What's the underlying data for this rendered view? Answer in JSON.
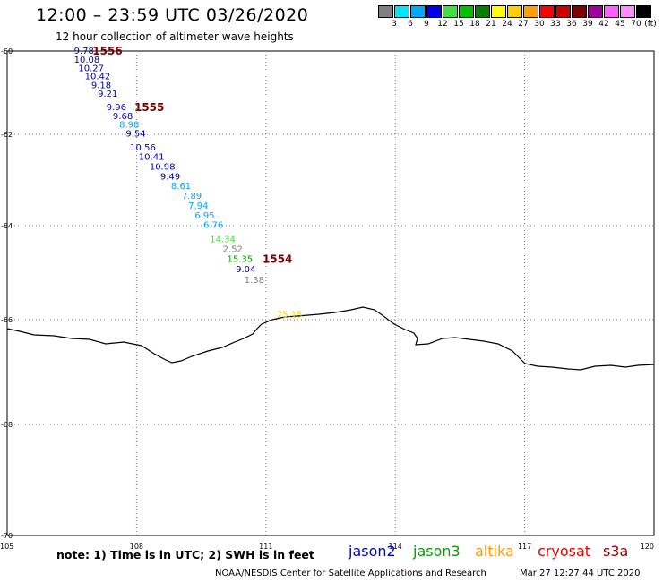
{
  "header": {
    "title": "12:00 – 23:59 UTC 03/26/2020",
    "subtitle": "12 hour collection of altimeter wave heights"
  },
  "colorbar": {
    "swatches": [
      "#808080",
      "#00e8ff",
      "#00a8ff",
      "#0000ee",
      "#40e040",
      "#00c000",
      "#008000",
      "#ffff00",
      "#ffd000",
      "#ffa000",
      "#ff0000",
      "#cc0000",
      "#800000",
      "#a000a0",
      "#ff60ff",
      "#ff90ff",
      "#000000"
    ],
    "ticks": [
      "3",
      "6",
      "9",
      "12",
      "15",
      "18",
      "21",
      "24",
      "27",
      "30",
      "33",
      "36",
      "39",
      "42",
      "45",
      "70"
    ],
    "unit": "(ft)"
  },
  "axes": {
    "lat_ticks": [
      "-60",
      "-62",
      "-64",
      "-66",
      "-68",
      "-70"
    ],
    "lon_ticks": [
      "105",
      "108",
      "111",
      "114",
      "117",
      "120"
    ]
  },
  "track_labels": [
    "1556",
    "1555",
    "1554"
  ],
  "observations": [
    {
      "lon": 106.55,
      "lat": -60.06,
      "v": "9.78",
      "c": "#0000aa"
    },
    {
      "lon": 106.55,
      "lat": -60.28,
      "v": "10.08",
      "c": "#0000aa"
    },
    {
      "lon": 106.65,
      "lat": -60.48,
      "v": "10.27",
      "c": "#0000aa"
    },
    {
      "lon": 106.8,
      "lat": -60.68,
      "v": "10.42",
      "c": "#0000aa"
    },
    {
      "lon": 106.95,
      "lat": -60.89,
      "v": "9.18",
      "c": "#0000aa"
    },
    {
      "lon": 107.1,
      "lat": -61.1,
      "v": "9.21",
      "c": "#0000aa"
    },
    {
      "lon": 107.3,
      "lat": -61.42,
      "v": "9.96",
      "c": "#0000aa"
    },
    {
      "lon": 107.45,
      "lat": -61.63,
      "v": "9.68",
      "c": "#0000aa"
    },
    {
      "lon": 107.6,
      "lat": -61.84,
      "v": "8.98",
      "c": "#00a8ff"
    },
    {
      "lon": 107.75,
      "lat": -62.05,
      "v": "9.54",
      "c": "#0000aa"
    },
    {
      "lon": 107.85,
      "lat": -62.35,
      "v": "10.56",
      "c": "#0000aa"
    },
    {
      "lon": 108.05,
      "lat": -62.56,
      "v": "10.41",
      "c": "#0000aa"
    },
    {
      "lon": 108.3,
      "lat": -62.77,
      "v": "10.98",
      "c": "#0000aa"
    },
    {
      "lon": 108.55,
      "lat": -62.99,
      "v": "9.49",
      "c": "#0000aa"
    },
    {
      "lon": 108.8,
      "lat": -63.2,
      "v": "8.61",
      "c": "#00a8ff"
    },
    {
      "lon": 109.05,
      "lat": -63.41,
      "v": "7.89",
      "c": "#00a8ff"
    },
    {
      "lon": 109.2,
      "lat": -63.63,
      "v": "7.94",
      "c": "#00a8ff"
    },
    {
      "lon": 109.35,
      "lat": -63.84,
      "v": "6.95",
      "c": "#00a8ff"
    },
    {
      "lon": 109.55,
      "lat": -64.05,
      "v": "6.76",
      "c": "#00a8ff"
    },
    {
      "lon": 109.7,
      "lat": -64.35,
      "v": "14.34",
      "c": "#40e040"
    },
    {
      "lon": 110.0,
      "lat": -64.56,
      "v": "2.52",
      "c": "#808080"
    },
    {
      "lon": 110.1,
      "lat": -64.77,
      "v": "15.35",
      "c": "#00a000"
    },
    {
      "lon": 110.3,
      "lat": -64.99,
      "v": "9.04",
      "c": "#0000aa"
    },
    {
      "lon": 110.5,
      "lat": -65.22,
      "v": "1.38",
      "c": "#808080"
    },
    {
      "lon": 111.25,
      "lat": -65.95,
      "v": "25.15",
      "c": "#ffd000"
    }
  ],
  "note": "note: 1) Time is in UTC; 2) SWH is in feet",
  "missions": [
    {
      "name": "jason2",
      "color": "#0000cc"
    },
    {
      "name": "jason3",
      "color": "#00a000"
    },
    {
      "name": "altika",
      "color": "#ff9900"
    },
    {
      "name": "cryosat",
      "color": "#ee0000"
    },
    {
      "name": "s3a",
      "color": "#990000"
    }
  ],
  "footer": {
    "credit": "NOAA/NESDIS Center for Satellite Applications and Research",
    "timestamp": "Mar 27 12:27:44 UTC 2020"
  }
}
